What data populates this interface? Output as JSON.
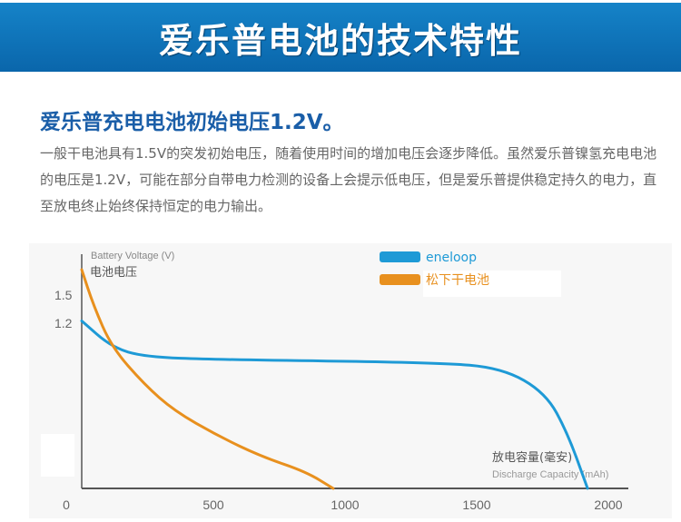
{
  "banner": {
    "title": "爱乐普电池的技术特性"
  },
  "subtitle": "爱乐普充电电池初始电压1.2V。",
  "description": "一般干电池具有1.5V的突发初始电压，随着使用时间的增加电压会逐步降低。虽然爱乐普镍氢充电电池的电压是1.2V，可能在部分自带电力检测的设备上会提示低电压，但是爱乐普提供稳定持久的电力，直至放电终止始终保持恒定的电力输出。",
  "chart_data": {
    "type": "line",
    "ylabel_en": "Battery Voltage (V)",
    "ylabel_cn": "电池电压",
    "xlabel_cn": "放电容量(毫安)",
    "xlabel_en": "Discharge Capacity (mAh)",
    "xlim": [
      0,
      2000
    ],
    "ylim": [
      0,
      1.6
    ],
    "xticks": [
      {
        "v": 0,
        "label": "0"
      },
      {
        "v": 500,
        "label": "500"
      },
      {
        "v": 1000,
        "label": "1000"
      },
      {
        "v": 1500,
        "label": "1500"
      },
      {
        "v": 2000,
        "label": "2000"
      }
    ],
    "yticks": [
      {
        "v": 1.5,
        "label": "1.5"
      },
      {
        "v": 1.2,
        "label": "1.2"
      }
    ],
    "legend_position": "top-right",
    "series": [
      {
        "name": "eneloop",
        "color": "#1e9ad6",
        "x": [
          0,
          114,
          238,
          517,
          1348,
          1597,
          1762,
          1845,
          1921
        ],
        "y": [
          1.21,
          1.02,
          0.95,
          0.93,
          0.91,
          0.87,
          0.69,
          0.4,
          0
        ]
      },
      {
        "name": "松下干电池",
        "color": "#e8901e",
        "x": [
          0,
          45,
          114,
          238,
          352,
          517,
          683,
          852,
          955
        ],
        "y": [
          1.58,
          1.32,
          1.02,
          0.75,
          0.56,
          0.38,
          0.23,
          0.12,
          0
        ]
      }
    ]
  }
}
